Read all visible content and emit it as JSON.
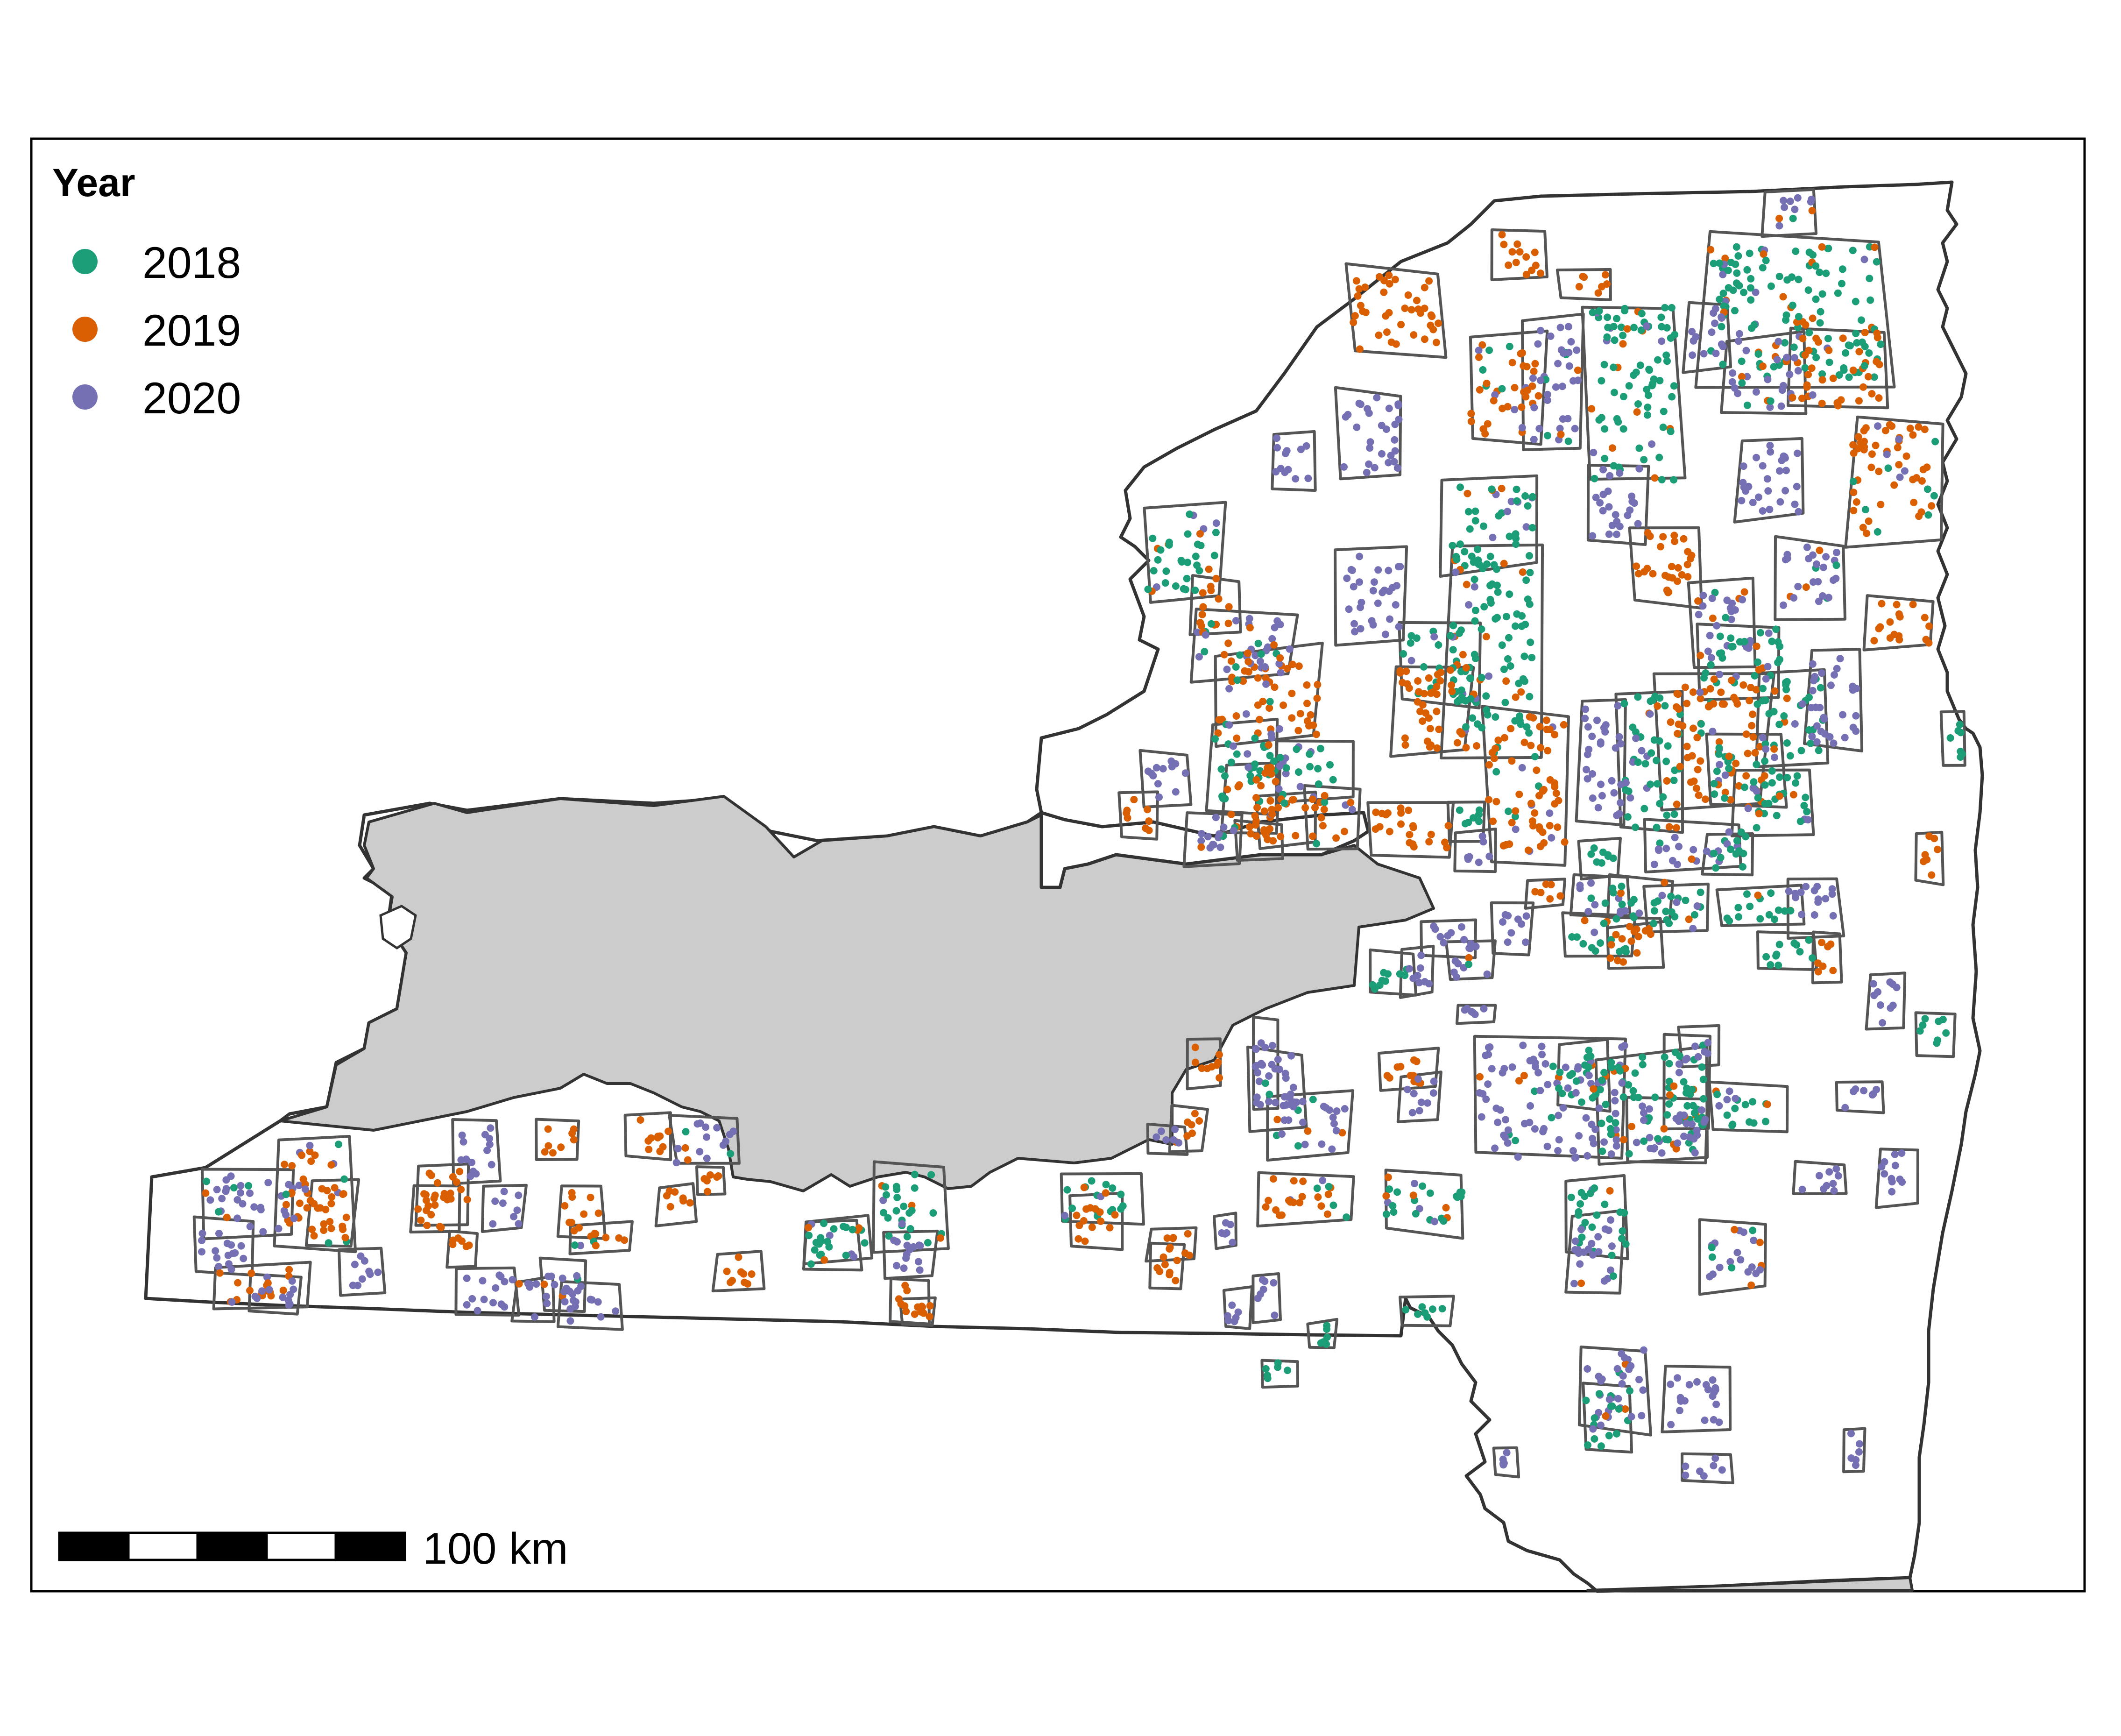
{
  "legend": {
    "title": "Year",
    "items": [
      {
        "label": "2018",
        "color": "#1b9e77"
      },
      {
        "label": "2019",
        "color": "#d95f02"
      },
      {
        "label": "2020",
        "color": "#7570b3"
      }
    ]
  },
  "scale_bar": {
    "label": "100 km",
    "fill_colors": [
      "#000000",
      "#ffffff"
    ]
  },
  "map": {
    "excluded_region_color": "#cccccc",
    "boundary_color": "#333333",
    "plot_outline_color": "#555555"
  }
}
